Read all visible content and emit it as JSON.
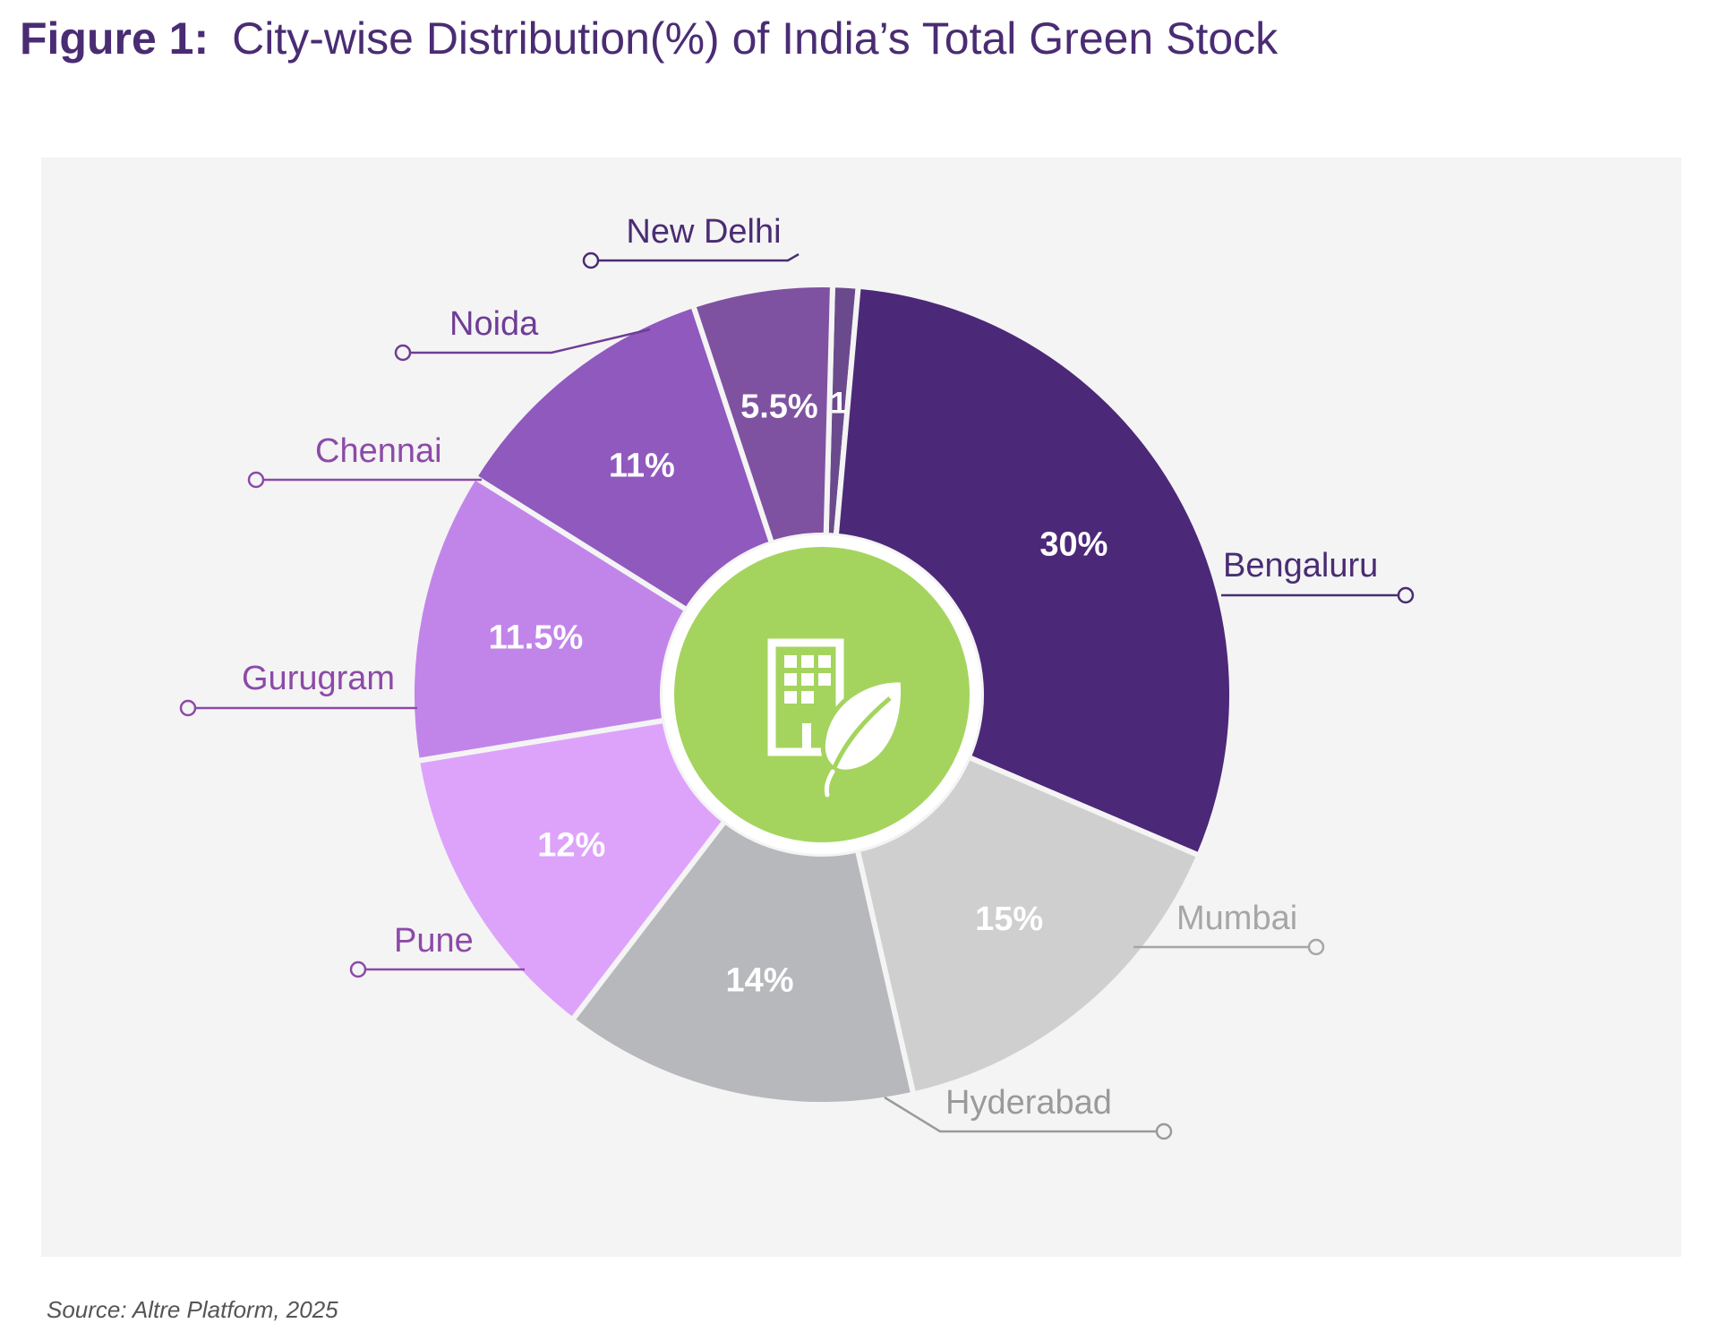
{
  "figure_label": "Figure 1:",
  "title_text": "City-wise Distribution(%) of India’s Total Green Stock",
  "source": "Source: Altre Platform, 2025",
  "center_icon": "green-building-leaf-icon",
  "colors": {
    "center": "#a4d45e",
    "background": "#f4f4f4"
  },
  "chart_data": {
    "type": "pie",
    "variant": "donut",
    "title": "City-wise Distribution(%) of India’s Total Green Stock",
    "series": [
      {
        "name": "New Delhi",
        "value": 1,
        "label": "1",
        "color": "#6a4a8c",
        "label_color": "#4a2c73"
      },
      {
        "name": "Bengaluru",
        "value": 30,
        "label": "30%",
        "color": "#4c2878",
        "label_color": "#4a2c73"
      },
      {
        "name": "Mumbai",
        "value": 15,
        "label": "15%",
        "color": "#d0cfd0",
        "label_color": "#a6a6a6"
      },
      {
        "name": "Hyderabad",
        "value": 14,
        "label": "14%",
        "color": "#b7b8bc",
        "label_color": "#9a9a9a"
      },
      {
        "name": "Pune",
        "value": 12,
        "label": "12%",
        "color": "#dda3fb",
        "label_color": "#8c4aa8"
      },
      {
        "name": "Gurugram",
        "value": 11.5,
        "label": "11.5%",
        "color": "#c185ea",
        "label_color": "#8c4aa8"
      },
      {
        "name": "Chennai",
        "value": 11,
        "label": "11%",
        "color": "#9059be",
        "label_color": "#8c4aa8"
      },
      {
        "name": "Noida",
        "value": 5.5,
        "label": "5.5%",
        "color": "#7e52a0",
        "label_color": "#6e3d96"
      }
    ]
  }
}
